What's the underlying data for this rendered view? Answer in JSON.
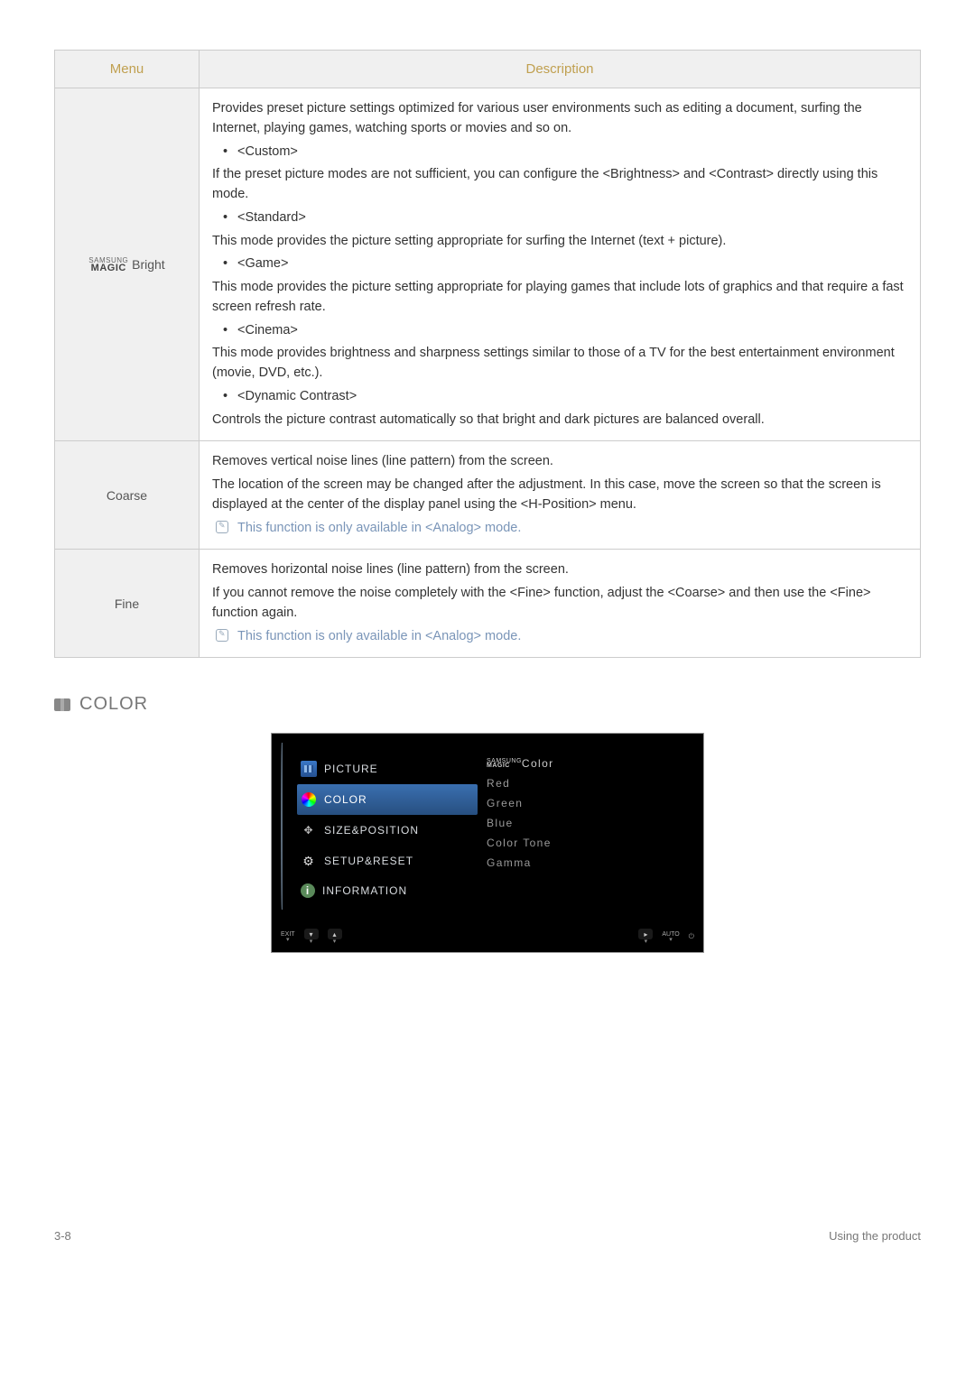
{
  "table": {
    "head": {
      "menu": "Menu",
      "description": "Description"
    },
    "rows": {
      "bright": {
        "label_top": "SAMSUNG",
        "label_bot": "MAGIC",
        "label_text": " Bright",
        "intro": "Provides preset picture settings optimized for various user environments such as editing a document, surfing the Internet, playing games, watching sports or movies and so on.",
        "custom_b": "<Custom>",
        "custom_t": "If the preset picture modes are not sufficient, you can configure the <Brightness> and <Contrast> directly using this mode.",
        "standard_b": "<Standard>",
        "standard_t": "This mode provides the picture setting appropriate for surfing the Internet (text + picture).",
        "game_b": "<Game>",
        "game_t": "This mode provides the picture setting appropriate for playing games that include lots of graphics and that require a fast screen refresh rate.",
        "cinema_b": "<Cinema>",
        "cinema_t": "This mode provides brightness and sharpness settings similar to those of a TV for the best entertainment environment (movie, DVD, etc.).",
        "dynamic_b": "<Dynamic Contrast>",
        "dynamic_t": "Controls the picture contrast automatically so that bright and dark pictures are balanced overall."
      },
      "coarse": {
        "label": "Coarse",
        "p1": "Removes vertical noise lines (line pattern) from the screen.",
        "p2": "The location of the screen may be changed after the adjustment. In this case, move the screen so that the screen is displayed at the center of the display panel using the <H-Position> menu.",
        "note": "This function is only available in <Analog> mode."
      },
      "fine": {
        "label": "Fine",
        "p1": "Removes horizontal noise lines (line pattern) from the screen.",
        "p2": "If you cannot remove the noise completely with the <Fine> function, adjust the <Coarse> and then use the <Fine> function again.",
        "note": "This function is only available in <Analog> mode."
      }
    }
  },
  "section": {
    "title": "COLOR"
  },
  "osd": {
    "left": {
      "picture": "PICTURE",
      "color": "COLOR",
      "size": "SIZE&POSITION",
      "setup": "SETUP&RESET",
      "info": "INFORMATION"
    },
    "right": {
      "magic_top": "SAMSUNG",
      "magic_bot": "MAGIC",
      "magic_txt": "Color",
      "red": "Red",
      "green": "Green",
      "blue": "Blue",
      "tone": "Color Tone",
      "gamma": "Gamma"
    },
    "bottom": {
      "exit": "EXIT",
      "auto": "AUTO"
    }
  },
  "footer": {
    "left": "3-8",
    "right": "Using the product"
  }
}
